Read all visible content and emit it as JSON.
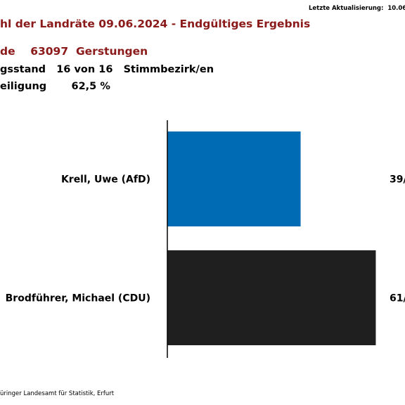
{
  "header": {
    "update_label": "Letzte Aktualisierung:",
    "update_value": "10.06",
    "title": "hl der Landräte 09.06.2024 - Endgültiges Ergebnis",
    "municipality_prefix": "de",
    "municipality_code": "63097",
    "municipality_name": "Gerstungen",
    "count_label": "gsstand",
    "count_value": "16 von 16",
    "count_unit": "Stimmbezirk/en",
    "turnout_label": "eiligung",
    "turnout_value": "62,5 %"
  },
  "footer": {
    "source": "üringer Landesamt für Statistik, Erfurt"
  },
  "chart_data": {
    "type": "bar",
    "orientation": "horizontal",
    "categories": [
      "Krell, Uwe (AfD)",
      "Brodführer, Michael (CDU)"
    ],
    "values": [
      39,
      61
    ],
    "value_labels": [
      "39/",
      "61/"
    ],
    "xlim": [
      0,
      100
    ],
    "colors": [
      "#006bb5",
      "#1f1f1f"
    ],
    "grid": false,
    "legend": "none"
  }
}
